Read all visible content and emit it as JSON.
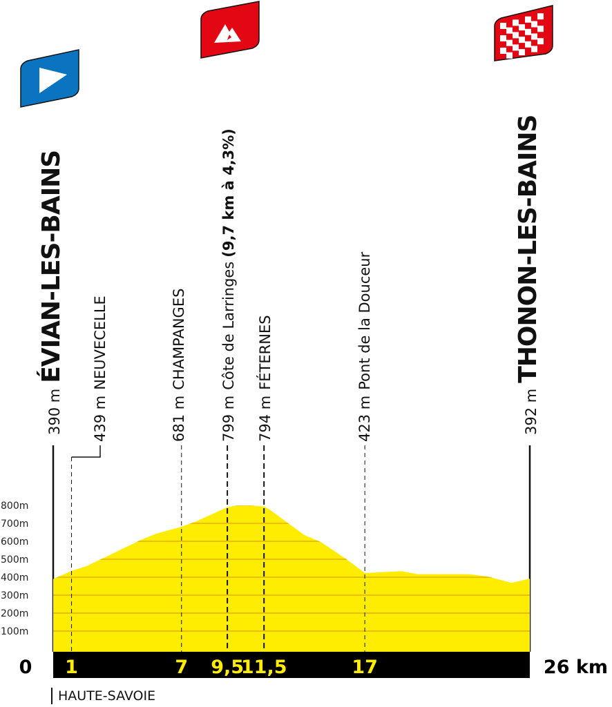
{
  "colors": {
    "profile": "#FFED00",
    "grid": "#E0A000",
    "bar": "#000000",
    "km_text": "#FFED00",
    "start_flag": "#0A74C0",
    "climb_flag": "#E30613",
    "finish_flag": "#E30613"
  },
  "icons": {
    "start": "play-triangle-icon",
    "climb": "mountain-icon",
    "finish": "checkered-flag-icon"
  },
  "start": {
    "altitude": "390 m",
    "name": "ÉVIAN-LES-BAINS"
  },
  "finish": {
    "altitude": "392 m",
    "name": "THONON-LES-BAINS"
  },
  "points": [
    {
      "altitude": "439 m",
      "name": "NEUVECELLE"
    },
    {
      "altitude": "681 m",
      "name": "CHAMPANGES"
    },
    {
      "altitude": "799 m",
      "name": "Côte de Larringes",
      "detail": "(9,7 km à 4,3%)"
    },
    {
      "altitude": "794 m",
      "name": "FÉTERNES"
    },
    {
      "altitude": "423 m",
      "name": "Pont de la Douceur"
    }
  ],
  "region": "HAUTE-SAVOIE",
  "chart_data": {
    "type": "area",
    "title": "",
    "xlabel": "",
    "ylabel": "",
    "xlim": [
      0,
      26
    ],
    "ylim": [
      0,
      800
    ],
    "y_ticks": [
      "100m",
      "200m",
      "300m",
      "400m",
      "500m",
      "600m",
      "700m",
      "800m"
    ],
    "y_tick_values": [
      100,
      200,
      300,
      400,
      500,
      600,
      700,
      800
    ],
    "x_labels": {
      "start": "0",
      "end": "26 km",
      "marks": [
        "1",
        "7",
        "9,5",
        "11,5",
        "17"
      ]
    },
    "x_mark_values": [
      1,
      7,
      9.5,
      11.5,
      17
    ],
    "grid": true,
    "profile": [
      [
        0,
        390
      ],
      [
        1,
        435
      ],
      [
        1.8,
        461
      ],
      [
        2.6,
        500
      ],
      [
        4.8,
        609
      ],
      [
        5.6,
        642
      ],
      [
        7,
        681
      ],
      [
        7.8,
        711
      ],
      [
        9.5,
        790
      ],
      [
        10,
        799
      ],
      [
        10.8,
        799
      ],
      [
        11.5,
        794
      ],
      [
        11.8,
        777
      ],
      [
        13.7,
        635
      ],
      [
        14.6,
        596
      ],
      [
        16,
        500
      ],
      [
        17,
        423
      ],
      [
        19,
        434
      ],
      [
        19.9,
        417
      ],
      [
        22.7,
        417
      ],
      [
        23.7,
        404
      ],
      [
        25,
        369
      ],
      [
        26,
        392
      ]
    ]
  }
}
